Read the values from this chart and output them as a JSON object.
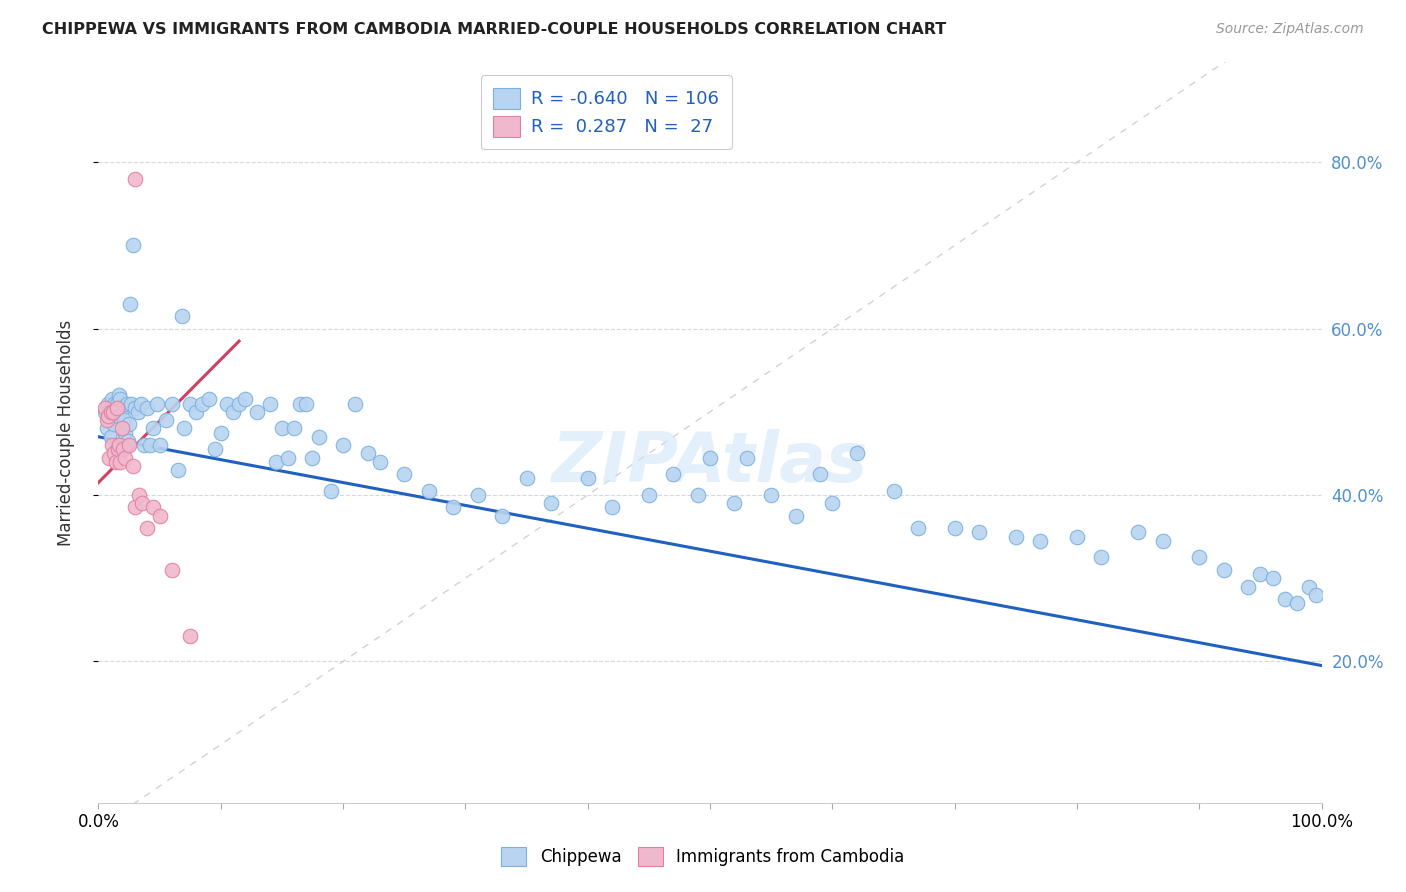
{
  "title": "CHIPPEWA VS IMMIGRANTS FROM CAMBODIA MARRIED-COUPLE HOUSEHOLDS CORRELATION CHART",
  "source": "Source: ZipAtlas.com",
  "ylabel": "Married-couple Households",
  "legend_label1": "Chippewa",
  "legend_label2": "Immigrants from Cambodia",
  "R1": -0.64,
  "N1": 106,
  "R2": 0.287,
  "N2": 27,
  "color_blue": "#b8d4f0",
  "color_pink": "#f0b8cc",
  "color_blue_line": "#2060c0",
  "color_pink_line": "#d04060",
  "color_diag": "#c8c8c8",
  "xlim": [
    0.0,
    1.0
  ],
  "ylim": [
    0.03,
    0.92
  ],
  "yticks": [
    0.2,
    0.4,
    0.6,
    0.8
  ],
  "xticks": [
    0.0,
    0.1,
    0.2,
    0.3,
    0.4,
    0.5,
    0.6,
    0.7,
    0.8,
    0.9,
    1.0
  ],
  "blue_trend_x": [
    0.0,
    1.0
  ],
  "blue_trend_y": [
    0.47,
    0.195
  ],
  "pink_trend_x": [
    0.0,
    0.115
  ],
  "pink_trend_y": [
    0.415,
    0.585
  ],
  "blue_x": [
    0.005,
    0.007,
    0.008,
    0.009,
    0.01,
    0.01,
    0.011,
    0.012,
    0.013,
    0.013,
    0.014,
    0.015,
    0.015,
    0.016,
    0.016,
    0.017,
    0.018,
    0.019,
    0.02,
    0.02,
    0.021,
    0.022,
    0.023,
    0.024,
    0.025,
    0.027,
    0.028,
    0.03,
    0.032,
    0.035,
    0.037,
    0.04,
    0.042,
    0.045,
    0.048,
    0.05,
    0.055,
    0.06,
    0.065,
    0.07,
    0.075,
    0.08,
    0.085,
    0.09,
    0.095,
    0.1,
    0.105,
    0.11,
    0.115,
    0.12,
    0.13,
    0.14,
    0.145,
    0.15,
    0.155,
    0.16,
    0.165,
    0.17,
    0.175,
    0.18,
    0.19,
    0.2,
    0.21,
    0.22,
    0.23,
    0.25,
    0.27,
    0.29,
    0.31,
    0.33,
    0.35,
    0.37,
    0.4,
    0.42,
    0.45,
    0.47,
    0.49,
    0.5,
    0.52,
    0.53,
    0.55,
    0.57,
    0.59,
    0.6,
    0.62,
    0.65,
    0.67,
    0.7,
    0.72,
    0.75,
    0.77,
    0.8,
    0.82,
    0.85,
    0.87,
    0.9,
    0.92,
    0.94,
    0.95,
    0.96,
    0.97,
    0.98,
    0.99,
    0.995,
    0.026,
    0.068
  ],
  "blue_y": [
    0.5,
    0.48,
    0.51,
    0.495,
    0.505,
    0.47,
    0.515,
    0.505,
    0.51,
    0.485,
    0.445,
    0.51,
    0.46,
    0.505,
    0.495,
    0.52,
    0.515,
    0.46,
    0.505,
    0.47,
    0.49,
    0.475,
    0.51,
    0.465,
    0.485,
    0.51,
    0.7,
    0.505,
    0.5,
    0.51,
    0.46,
    0.505,
    0.46,
    0.48,
    0.51,
    0.46,
    0.49,
    0.51,
    0.43,
    0.48,
    0.51,
    0.5,
    0.51,
    0.515,
    0.455,
    0.475,
    0.51,
    0.5,
    0.51,
    0.515,
    0.5,
    0.51,
    0.44,
    0.48,
    0.445,
    0.48,
    0.51,
    0.51,
    0.445,
    0.47,
    0.405,
    0.46,
    0.51,
    0.45,
    0.44,
    0.425,
    0.405,
    0.385,
    0.4,
    0.375,
    0.42,
    0.39,
    0.42,
    0.385,
    0.4,
    0.425,
    0.4,
    0.445,
    0.39,
    0.445,
    0.4,
    0.375,
    0.425,
    0.39,
    0.45,
    0.405,
    0.36,
    0.36,
    0.355,
    0.35,
    0.345,
    0.35,
    0.325,
    0.355,
    0.345,
    0.325,
    0.31,
    0.29,
    0.305,
    0.3,
    0.275,
    0.27,
    0.29,
    0.28,
    0.63,
    0.615
  ],
  "pink_x": [
    0.005,
    0.007,
    0.008,
    0.009,
    0.01,
    0.011,
    0.012,
    0.013,
    0.014,
    0.015,
    0.016,
    0.017,
    0.018,
    0.019,
    0.02,
    0.022,
    0.025,
    0.028,
    0.03,
    0.033,
    0.036,
    0.04,
    0.045,
    0.05,
    0.06,
    0.075,
    0.03
  ],
  "pink_y": [
    0.505,
    0.49,
    0.495,
    0.445,
    0.5,
    0.46,
    0.5,
    0.45,
    0.44,
    0.505,
    0.455,
    0.46,
    0.44,
    0.48,
    0.455,
    0.445,
    0.46,
    0.435,
    0.385,
    0.4,
    0.39,
    0.36,
    0.385,
    0.375,
    0.31,
    0.23,
    0.78
  ]
}
